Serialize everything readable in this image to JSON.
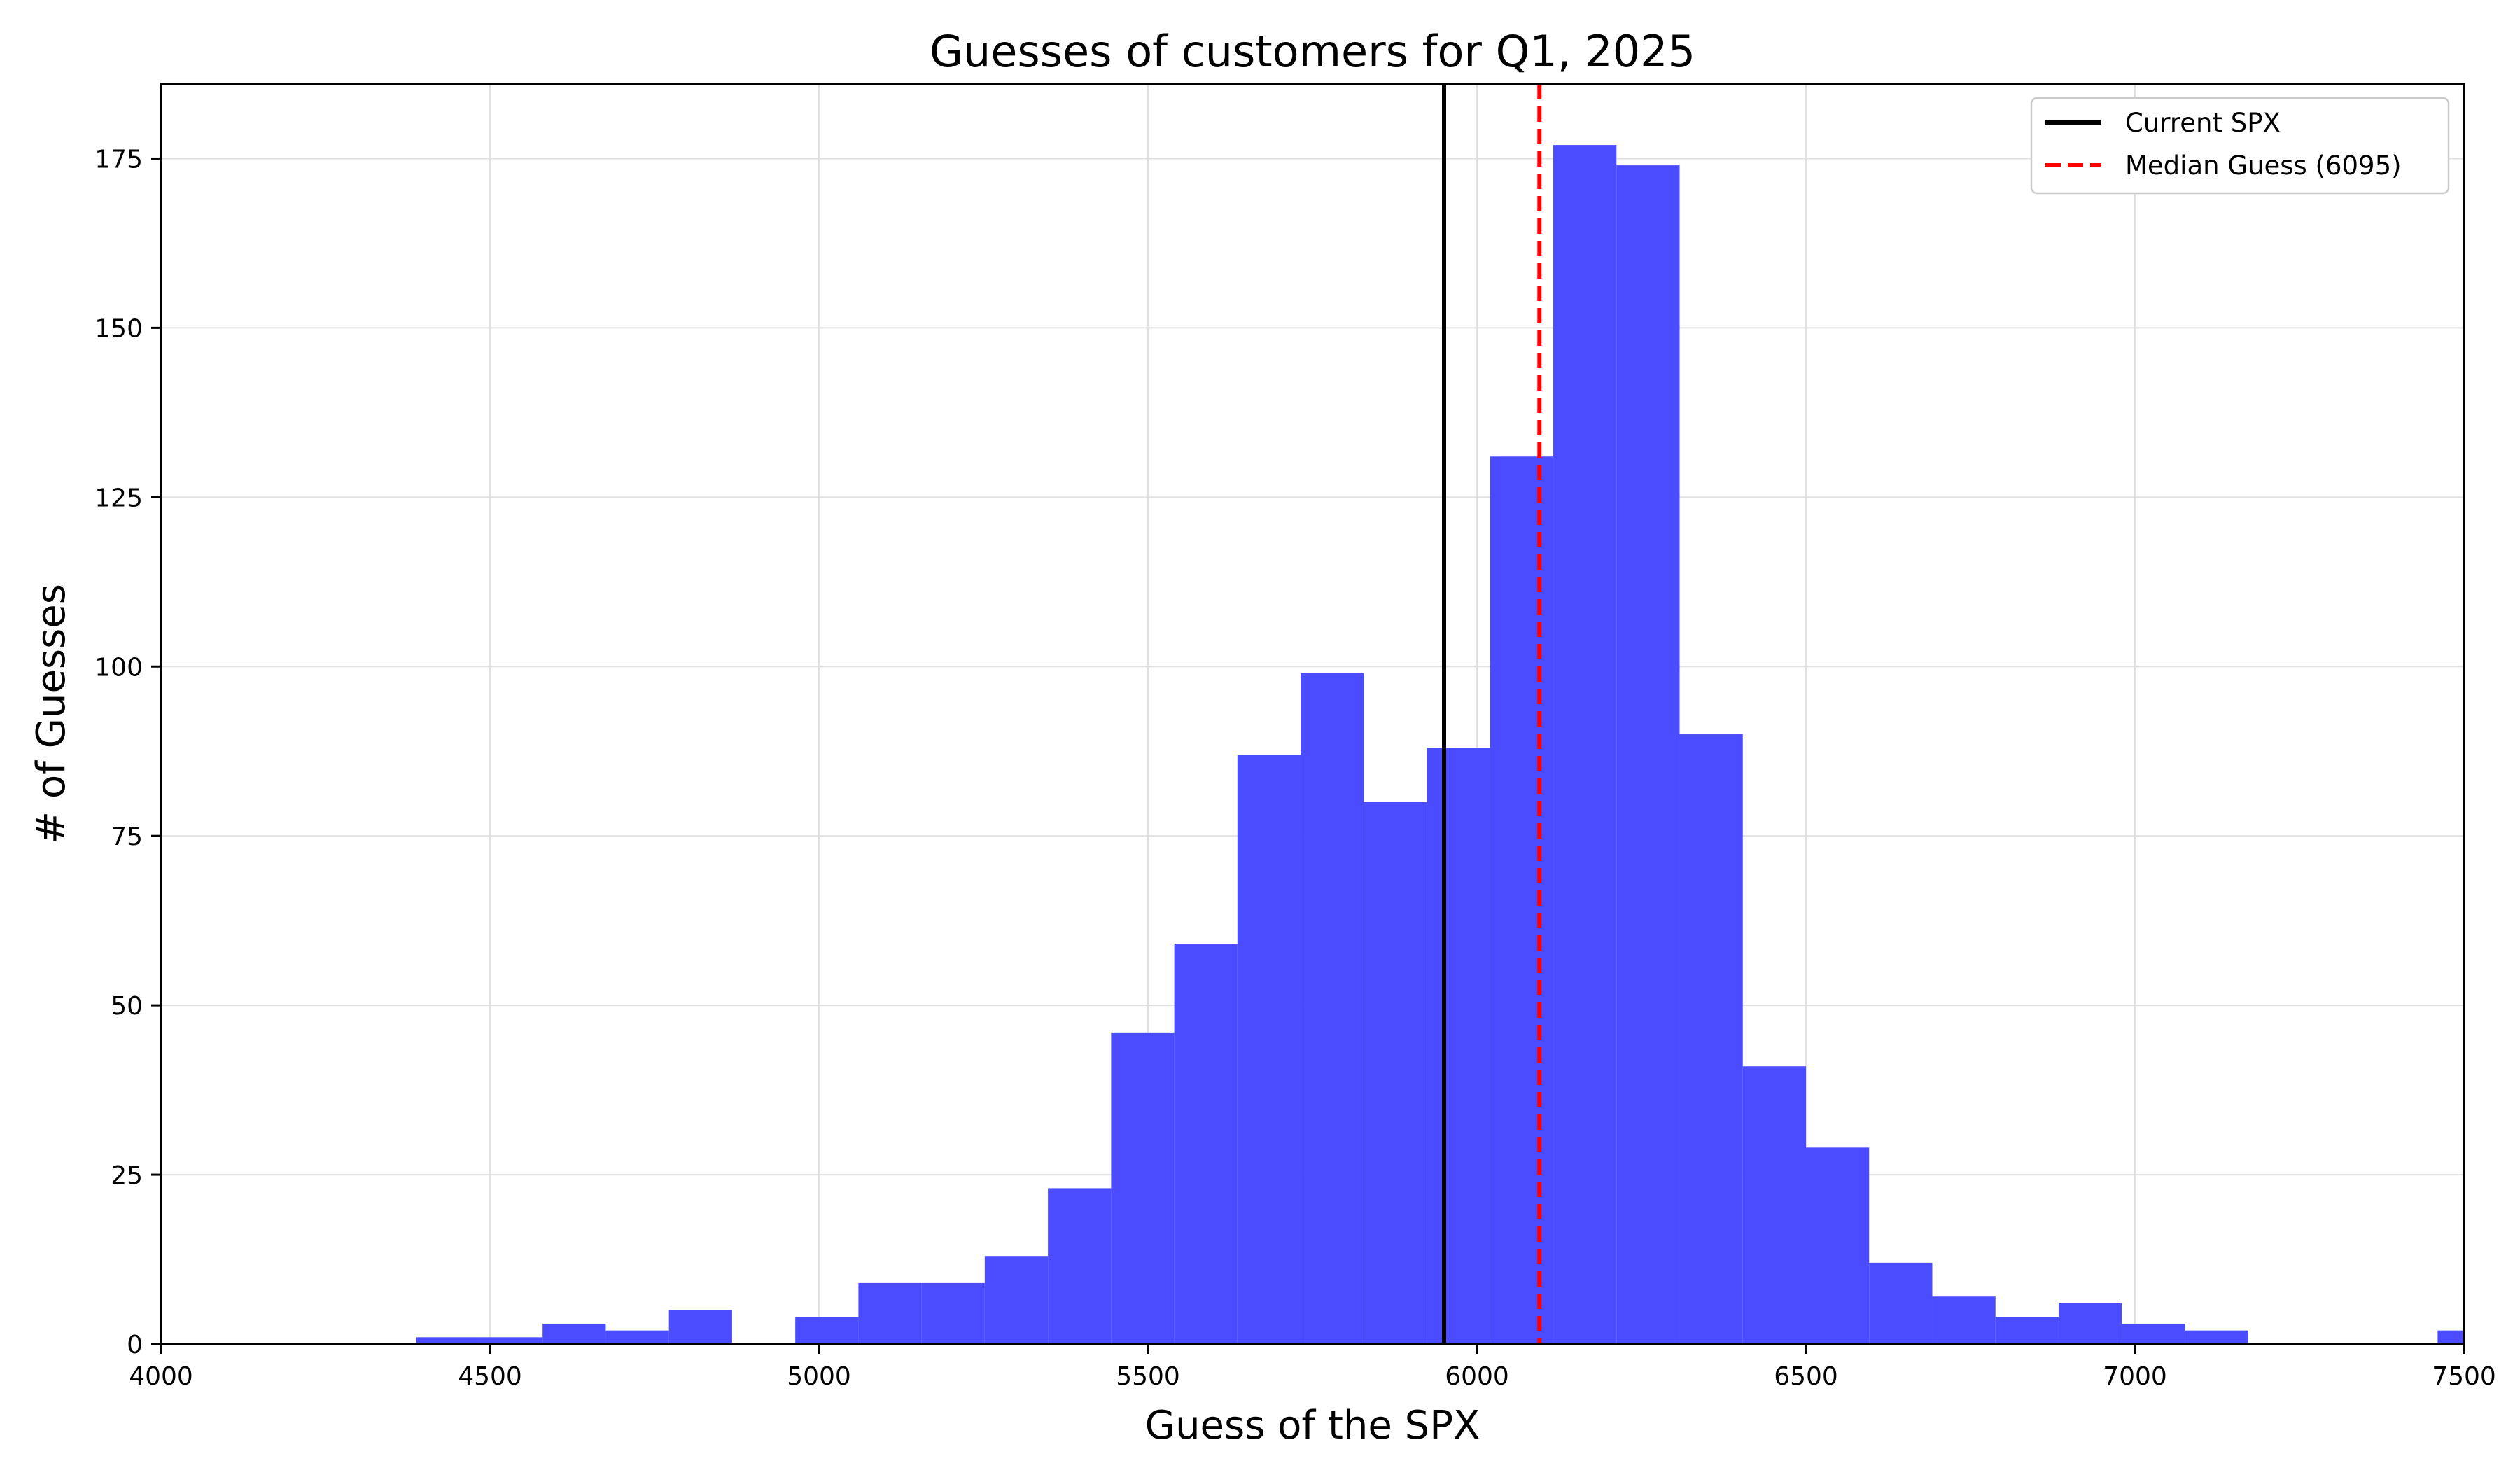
{
  "chart_data": {
    "type": "bar",
    "title": "Guesses of customers for Q1, 2025",
    "xlabel": "Guess of the SPX",
    "ylabel": "# of Guesses",
    "xlim": [
      4000,
      7500
    ],
    "ylim": [
      0,
      186
    ],
    "xticks": [
      4000,
      4500,
      5000,
      5500,
      6000,
      6500,
      7000,
      7500
    ],
    "yticks": [
      0,
      25,
      50,
      75,
      100,
      125,
      150,
      175
    ],
    "grid": true,
    "legend_position": "top-right",
    "bar_color": "#4b4bff",
    "bins": [
      {
        "x0": 4388,
        "x1": 4484,
        "count": 1
      },
      {
        "x0": 4484,
        "x1": 4580,
        "count": 1
      },
      {
        "x0": 4580,
        "x1": 4676,
        "count": 3
      },
      {
        "x0": 4676,
        "x1": 4772,
        "count": 2
      },
      {
        "x0": 4772,
        "x1": 4868,
        "count": 5
      },
      {
        "x0": 4868,
        "x1": 4964,
        "count": 0
      },
      {
        "x0": 4964,
        "x1": 5060,
        "count": 4
      },
      {
        "x0": 5060,
        "x1": 5156,
        "count": 9
      },
      {
        "x0": 5156,
        "x1": 5252,
        "count": 9
      },
      {
        "x0": 5252,
        "x1": 5348,
        "count": 13
      },
      {
        "x0": 5348,
        "x1": 5444,
        "count": 23
      },
      {
        "x0": 5444,
        "x1": 5540,
        "count": 46
      },
      {
        "x0": 5540,
        "x1": 5636,
        "count": 59
      },
      {
        "x0": 5636,
        "x1": 5732,
        "count": 87
      },
      {
        "x0": 5732,
        "x1": 5828,
        "count": 99
      },
      {
        "x0": 5828,
        "x1": 5924,
        "count": 80
      },
      {
        "x0": 5924,
        "x1": 6020,
        "count": 88
      },
      {
        "x0": 6020,
        "x1": 6116,
        "count": 131
      },
      {
        "x0": 6116,
        "x1": 6212,
        "count": 177
      },
      {
        "x0": 6212,
        "x1": 6308,
        "count": 174
      },
      {
        "x0": 6308,
        "x1": 6404,
        "count": 90
      },
      {
        "x0": 6404,
        "x1": 6500,
        "count": 41
      },
      {
        "x0": 6500,
        "x1": 6596,
        "count": 29
      },
      {
        "x0": 6596,
        "x1": 6692,
        "count": 12
      },
      {
        "x0": 6692,
        "x1": 6788,
        "count": 7
      },
      {
        "x0": 6788,
        "x1": 6884,
        "count": 4
      },
      {
        "x0": 6884,
        "x1": 6980,
        "count": 6
      },
      {
        "x0": 6980,
        "x1": 7076,
        "count": 3
      },
      {
        "x0": 7076,
        "x1": 7172,
        "count": 2
      },
      {
        "x0": 7460,
        "x1": 7556,
        "count": 2
      }
    ],
    "reference_lines": [
      {
        "name": "Current SPX",
        "x": 5950,
        "color": "#000000",
        "style": "solid"
      },
      {
        "name": "Median Guess (6095)",
        "x": 6095,
        "color": "#ff0000",
        "style": "dashed"
      }
    ]
  }
}
